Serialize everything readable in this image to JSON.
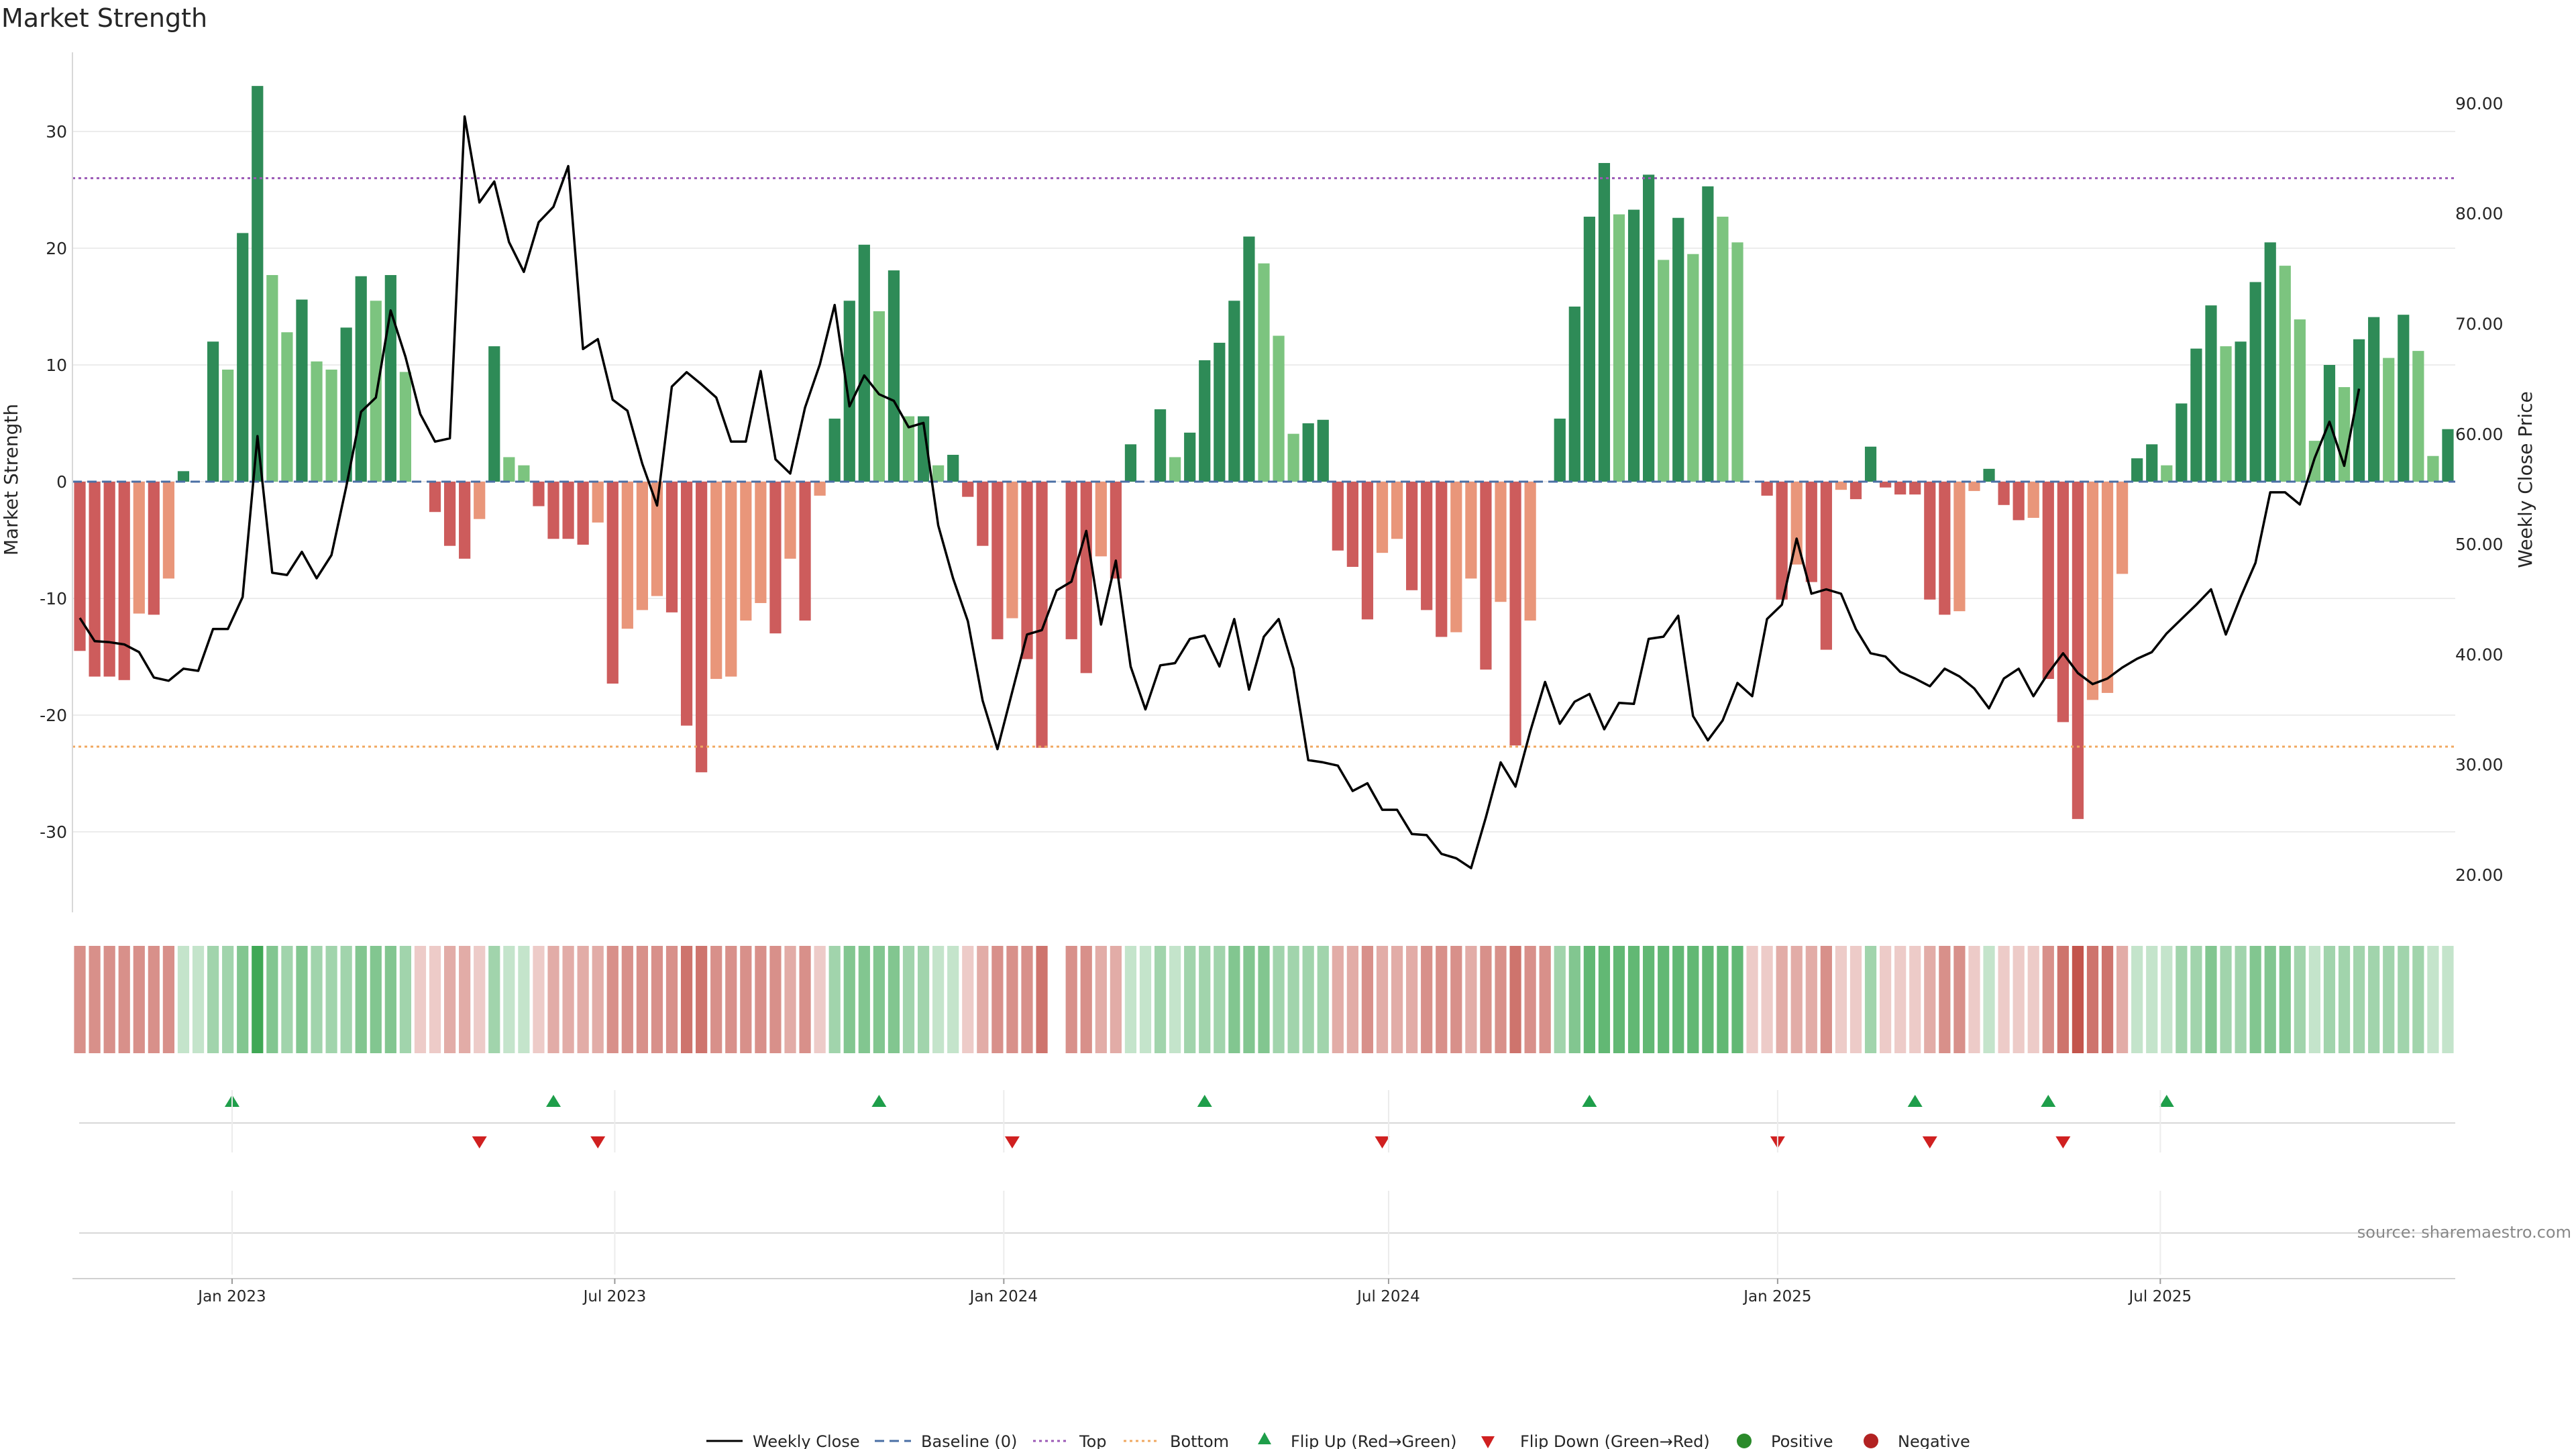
{
  "chart_data": {
    "type": "bar",
    "title": "Market Strength",
    "ylabel": "Market Strength",
    "y2label": "Weekly Close Price",
    "ylim": [
      -37,
      37
    ],
    "y2lim": [
      17.5,
      93
    ],
    "yticks": [
      30,
      20,
      10,
      0,
      -10,
      -20,
      -30
    ],
    "y2ticks": [
      "90.00",
      "80.00",
      "70.00",
      "60.00",
      "50.00",
      "40.00",
      "30.00",
      "20.00"
    ],
    "x_ticks": [
      {
        "label": "Jan 2023",
        "date": "2023-01-01"
      },
      {
        "label": "Jul 2023",
        "date": "2023-07-01"
      },
      {
        "label": "Jan 2024",
        "date": "2024-01-01"
      },
      {
        "label": "Jul 2024",
        "date": "2024-07-01"
      },
      {
        "label": "Jan 2025",
        "date": "2025-01-01"
      },
      {
        "label": "Jul 2025",
        "date": "2025-07-01"
      }
    ],
    "start_week": "2022-10-21",
    "top_line": 26,
    "bottom_line": -22.7,
    "colors": {
      "green_dark": "#2e8b57",
      "green_light": "#7cc47f",
      "red_dark": "#cd5c5c",
      "red_light": "#e9967a",
      "price": "#000000",
      "top": "#9b59b6",
      "bottom": "#f0a860",
      "baseline": "#4a6fa5",
      "flip_up": "#1e9e4a",
      "flip_down": "#d02020"
    },
    "strength": [
      -14.5,
      -16.7,
      -16.7,
      -17,
      -11.3,
      -11.4,
      -8.3,
      0.9,
      0,
      12,
      9.6,
      21.3,
      33.9,
      17.7,
      12.8,
      15.6,
      10.3,
      9.6,
      13.2,
      17.6,
      15.5,
      17.7,
      9.4,
      0,
      -2.6,
      -5.5,
      -6.6,
      -3.2,
      11.6,
      2.1,
      1.4,
      -2.1,
      -4.9,
      -4.9,
      -5.4,
      -3.5,
      -17.3,
      -12.6,
      -11,
      -9.8,
      -11.2,
      -20.9,
      -24.9,
      -16.9,
      -16.7,
      -11.9,
      -10.4,
      -13,
      -6.6,
      -11.9,
      -1.2,
      5.4,
      15.5,
      20.3,
      14.6,
      18.1,
      5.6,
      5.6,
      1.4,
      2.3,
      -1.3,
      -5.5,
      -13.5,
      -11.7,
      -15.2,
      -22.8,
      0,
      -13.5,
      -16.4,
      -6.4,
      -8.3,
      3.2,
      0,
      6.2,
      2.1,
      4.2,
      10.4,
      11.9,
      15.5,
      21,
      18.7,
      12.5,
      4.1,
      5,
      5.3,
      -5.9,
      -7.3,
      -11.8,
      -6.1,
      -4.9,
      -9.3,
      -11,
      -13.3,
      -12.9,
      -8.3,
      -16.1,
      -10.3,
      -22.6,
      -11.9,
      0,
      5.4,
      15,
      22.7,
      27.3,
      22.9,
      23.3,
      26.3,
      19,
      22.6,
      19.5,
      25.3,
      22.7,
      20.5,
      0,
      -1.2,
      -10.1,
      -7.1,
      -8.6,
      -14.4,
      -0.7,
      -1.5,
      3,
      -0.5,
      -1.1,
      -1.1,
      -10.1,
      -11.4,
      -11.1,
      -0.8,
      1.1,
      -2,
      -3.3,
      -3.1,
      -16.9,
      -20.6,
      -28.9,
      -18.7,
      -18.1,
      -7.9,
      2,
      3.2,
      1.4,
      6.7,
      11.4,
      15.1,
      11.6,
      12,
      17.1,
      20.5,
      18.5,
      13.9,
      3.5,
      10,
      8.1,
      12.2,
      14.1,
      10.6,
      14.3,
      11.2,
      2.2,
      4.5
    ],
    "price": [
      43.3,
      41.2,
      41.1,
      40.9,
      40.2,
      37.9,
      37.6,
      38.7,
      38.5,
      42.3,
      42.3,
      45.2,
      59.8,
      47.4,
      47.2,
      49.3,
      46.9,
      49.0,
      55.2,
      62.0,
      63.3,
      71.2,
      67.0,
      61.8,
      59.3,
      59.6,
      88.8,
      81.0,
      82.9,
      77.4,
      74.7,
      79.2,
      80.6,
      84.3,
      67.7,
      68.6,
      63.1,
      62.1,
      57.3,
      53.5,
      64.3,
      65.6,
      64.5,
      63.3,
      59.3,
      59.3,
      65.7,
      57.7,
      56.4,
      62.4,
      66.3,
      71.7,
      62.5,
      65.3,
      63.6,
      63.0,
      60.6,
      61.0,
      51.7,
      46.9,
      43.0,
      35.8,
      31.4,
      36.6,
      41.8,
      42.2,
      45.8,
      46.6,
      51.2,
      42.7,
      48.5,
      38.9,
      35.0,
      39.0,
      39.2,
      41.4,
      41.7,
      38.9,
      43.2,
      36.8,
      41.6,
      43.2,
      38.7,
      30.4,
      30.2,
      29.9,
      27.6,
      28.3,
      25.9,
      25.9,
      23.7,
      23.6,
      21.9,
      21.5,
      20.6,
      25.2,
      30.2,
      28.0,
      33.0,
      37.5,
      33.7,
      35.7,
      36.4,
      33.2,
      35.6,
      35.5,
      41.4,
      41.6,
      43.5,
      34.4,
      32.2,
      34.0,
      37.4,
      36.2,
      43.2,
      44.5,
      50.5,
      45.5,
      45.9,
      45.5,
      42.3,
      40.1,
      39.8,
      38.4,
      37.8,
      37.1,
      38.7,
      38.0,
      36.9,
      35.1,
      37.8,
      38.7,
      36.2,
      38.3,
      40.1,
      38.3,
      37.3,
      37.8,
      38.8,
      39.6,
      40.2,
      41.9,
      43.2,
      44.5,
      45.9,
      41.8,
      45.2,
      48.3,
      54.7,
      54.7,
      53.6,
      57.8,
      61.1,
      57.1,
      64.1
    ],
    "heat": [
      -3,
      -3,
      -3,
      -3,
      -3,
      -3,
      -3,
      1,
      1,
      2,
      2,
      3,
      5,
      3,
      2,
      3,
      2,
      2,
      2,
      3,
      3,
      3,
      2,
      -1,
      -1,
      -2,
      -2,
      -1,
      2,
      1,
      1,
      -1,
      -2,
      -2,
      -2,
      -2,
      -3,
      -3,
      -3,
      -3,
      -3,
      -4,
      -4,
      -3,
      -3,
      -3,
      -3,
      -3,
      -2,
      -3,
      -1,
      2,
      3,
      3,
      3,
      3,
      2,
      2,
      1,
      1,
      -1,
      -2,
      -3,
      -3,
      -3,
      -4,
      0,
      -3,
      -3,
      -2,
      -2,
      1,
      1,
      2,
      1,
      2,
      2,
      2,
      3,
      3,
      3,
      2,
      2,
      2,
      2,
      -2,
      -2,
      -3,
      -2,
      -2,
      -2,
      -3,
      -3,
      -3,
      -2,
      -3,
      -3,
      -4,
      -3,
      -3,
      2,
      3,
      4,
      4,
      4,
      4,
      4,
      4,
      4,
      4,
      4,
      4,
      4,
      -1,
      -1,
      -2,
      -2,
      -2,
      -3,
      -1,
      -1,
      2,
      -1,
      -1,
      -1,
      -2,
      -3,
      -3,
      -1,
      1,
      -1,
      -1,
      -1,
      -3,
      -4,
      -5,
      -4,
      -4,
      -2,
      1,
      1,
      1,
      2,
      2,
      3,
      2,
      2,
      3,
      3,
      3,
      2,
      1,
      2,
      2,
      2,
      2,
      2,
      2,
      2,
      1,
      1
    ],
    "flip_up": [
      "2023-01-01",
      "2023-06-02",
      "2023-11-03",
      "2024-04-05",
      "2024-10-04",
      "2025-03-07",
      "2025-05-09",
      "2025-07-04"
    ],
    "flip_down": [
      "2023-04-28",
      "2023-06-23",
      "2024-01-05",
      "2024-06-28",
      "2025-01-01",
      "2025-03-14",
      "2025-05-16"
    ],
    "source": "source: sharemaestro.com",
    "legend": {
      "weekly_close": "Weekly Close",
      "baseline": "Baseline (0)",
      "top": "Top",
      "bottom": "Bottom",
      "flip_up": "Flip Up (Red→Green)",
      "flip_down": "Flip Down (Green→Red)",
      "positive": "Positive",
      "negative": "Negative"
    }
  }
}
